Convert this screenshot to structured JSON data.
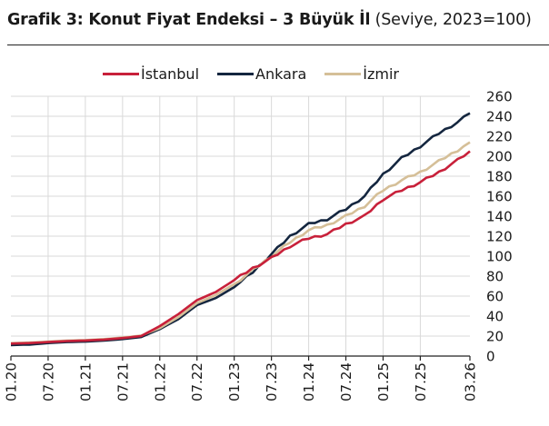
{
  "header": {
    "title_bold": "Grafik 3: Konut Fiyat Endeksi – 3 Büyük İl",
    "title_normal": " (Seviye, 2023=100)"
  },
  "legend": [
    {
      "label": "İstanbul",
      "color": "#c8203a"
    },
    {
      "label": "Ankara",
      "color": "#14263f"
    },
    {
      "label": "İzmir",
      "color": "#d5bf98"
    }
  ],
  "chart_data": {
    "type": "line",
    "title": "Grafik 3: Konut Fiyat Endeksi – 3 Büyük İl (Seviye, 2023=100)",
    "xlabel": "",
    "ylabel": "",
    "ylim": [
      0,
      260
    ],
    "yticks": [
      0,
      20,
      40,
      60,
      80,
      100,
      120,
      140,
      160,
      180,
      200,
      220,
      240,
      260
    ],
    "grid": true,
    "legend_position": "top",
    "y_axis_side": "right",
    "xtick_labels": [
      "01.20",
      "07.20",
      "01.21",
      "07.21",
      "01.22",
      "07.22",
      "01.23",
      "07.23",
      "01.24",
      "07.24",
      "01.25",
      "07.25",
      "03.26"
    ],
    "xtick_month_index": [
      0,
      6,
      12,
      18,
      24,
      30,
      36,
      42,
      48,
      54,
      60,
      66,
      74
    ],
    "x_start": "01.2020",
    "x_end": "03.2026",
    "frequency": "monthly",
    "checkpoints": {
      "months": [
        0,
        3,
        6,
        9,
        12,
        15,
        18,
        21,
        24,
        27,
        30,
        33,
        36,
        39,
        42,
        45,
        48,
        51,
        54,
        57,
        60,
        63,
        66,
        69,
        72,
        74
      ],
      "series": [
        {
          "name": "İstanbul",
          "color": "#c8203a",
          "values": [
            12.5,
            13,
            14,
            15,
            15.5,
            16.5,
            18,
            20,
            30,
            42,
            56,
            64,
            76,
            88,
            98,
            110,
            118,
            122,
            132,
            140,
            157,
            166,
            174,
            184,
            196,
            205
          ]
        },
        {
          "name": "Ankara",
          "color": "#14263f",
          "values": [
            11,
            11.5,
            13,
            14,
            14.5,
            15.5,
            17,
            19,
            27,
            37,
            51,
            58,
            69,
            84,
            102,
            120,
            132,
            137,
            147,
            160,
            182,
            198,
            210,
            223,
            234,
            243
          ]
        },
        {
          "name": "İzmir",
          "color": "#d5bf98",
          "values": [
            13,
            13.5,
            14.5,
            15.5,
            16,
            17,
            18.5,
            20.5,
            28,
            39,
            53,
            61,
            72,
            86,
            100,
            114,
            126,
            131,
            140,
            150,
            166,
            176,
            184,
            195,
            206,
            214
          ]
        }
      ]
    }
  }
}
